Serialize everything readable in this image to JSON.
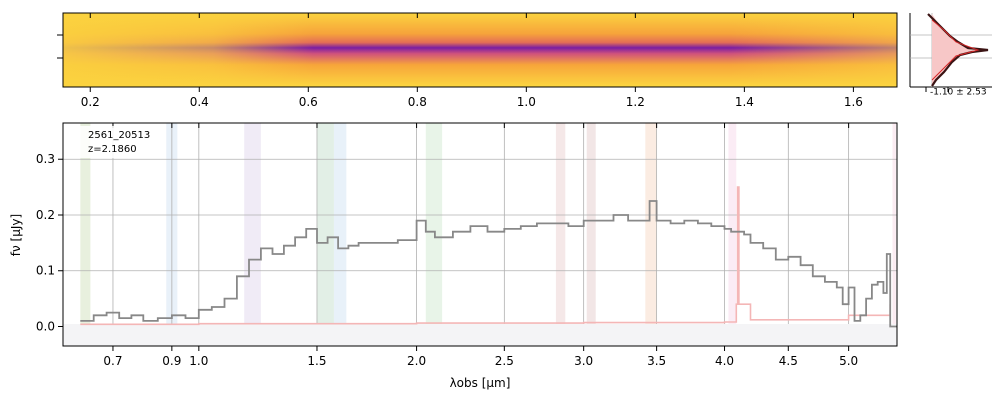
{
  "chart_data": [
    {
      "type": "heatmap",
      "description_colormap": "plasma",
      "x_ticks_top": [
        "0.2",
        "0.4",
        "0.6",
        "0.8",
        "1.0",
        "1.2",
        "1.4",
        "1.6"
      ],
      "x_tick_values_top": [
        0.2,
        0.4,
        0.6,
        0.8,
        1.0,
        1.2,
        1.4,
        1.6
      ],
      "xlim": [
        0.15,
        1.68
      ],
      "colors": {
        "low": "#fde725",
        "mid": "#e16462",
        "high": "#0d0887"
      }
    },
    {
      "type": "line",
      "profile_label": "-1.10 ± 2.53",
      "colors": {
        "fill": "#f7c7c7",
        "line": "#7f1d1d",
        "model": "#d62728"
      }
    },
    {
      "type": "line",
      "title": "",
      "object_id": "2561_20513",
      "redshift_label": "z=2.1860",
      "xlabel": "λobs [μm]",
      "ylabel": "fν [μJy]",
      "xlim": [
        0.55,
        5.42
      ],
      "ylim": [
        -0.035,
        0.365
      ],
      "x_ticks": [
        "0.7",
        "0.9",
        "1.0",
        "1.5",
        "2.0",
        "2.5",
        "3.0",
        "3.5",
        "4.0",
        "4.5",
        "5.0"
      ],
      "x_tick_values": [
        0.7,
        0.9,
        1.0,
        1.5,
        2.0,
        2.5,
        3.0,
        3.5,
        4.0,
        4.5,
        5.0
      ],
      "y_ticks": [
        "0.0",
        "0.1",
        "0.2",
        "0.3"
      ],
      "y_tick_values": [
        0.0,
        0.1,
        0.2,
        0.3
      ],
      "grid": true,
      "series": [
        {
          "color": "#888888",
          "x": [
            0.6,
            0.64,
            0.68,
            0.72,
            0.76,
            0.8,
            0.85,
            0.9,
            0.95,
            1.0,
            1.05,
            1.1,
            1.15,
            1.2,
            1.25,
            1.3,
            1.35,
            1.4,
            1.45,
            1.5,
            1.55,
            1.6,
            1.65,
            1.7,
            1.8,
            1.9,
            2.0,
            2.05,
            2.1,
            2.2,
            2.3,
            2.4,
            2.5,
            2.6,
            2.7,
            2.8,
            2.9,
            3.0,
            3.1,
            3.2,
            3.3,
            3.4,
            3.45,
            3.5,
            3.6,
            3.7,
            3.8,
            3.9,
            4.0,
            4.05,
            4.1,
            4.15,
            4.2,
            4.3,
            4.4,
            4.5,
            4.6,
            4.7,
            4.8,
            4.9,
            4.95,
            5.0,
            5.05,
            5.1,
            5.15,
            5.2,
            5.25,
            5.3,
            5.33,
            5.36
          ],
          "values": [
            0.01,
            0.02,
            0.025,
            0.015,
            0.02,
            0.01,
            0.015,
            0.02,
            0.015,
            0.03,
            0.035,
            0.05,
            0.09,
            0.12,
            0.14,
            0.13,
            0.145,
            0.16,
            0.175,
            0.15,
            0.16,
            0.14,
            0.145,
            0.15,
            0.15,
            0.155,
            0.19,
            0.17,
            0.16,
            0.17,
            0.18,
            0.17,
            0.175,
            0.18,
            0.185,
            0.185,
            0.18,
            0.19,
            0.19,
            0.2,
            0.19,
            0.19,
            0.225,
            0.19,
            0.185,
            0.19,
            0.185,
            0.18,
            0.175,
            0.17,
            0.17,
            0.165,
            0.15,
            0.14,
            0.12,
            0.125,
            0.11,
            0.09,
            0.08,
            0.07,
            0.04,
            0.07,
            0.01,
            0.02,
            0.05,
            0.075,
            0.08,
            0.06,
            0.13,
            0.0
          ]
        },
        {
          "color": "#f4b6b6",
          "x": [
            0.6,
            1.0,
            2.0,
            3.0,
            4.0,
            4.09,
            4.1,
            4.11,
            4.2,
            5.0,
            5.36
          ],
          "values": [
            0.004,
            0.005,
            0.006,
            0.007,
            0.008,
            0.04,
            0.25,
            0.04,
            0.012,
            0.02,
            0.04
          ]
        }
      ]
    }
  ]
}
